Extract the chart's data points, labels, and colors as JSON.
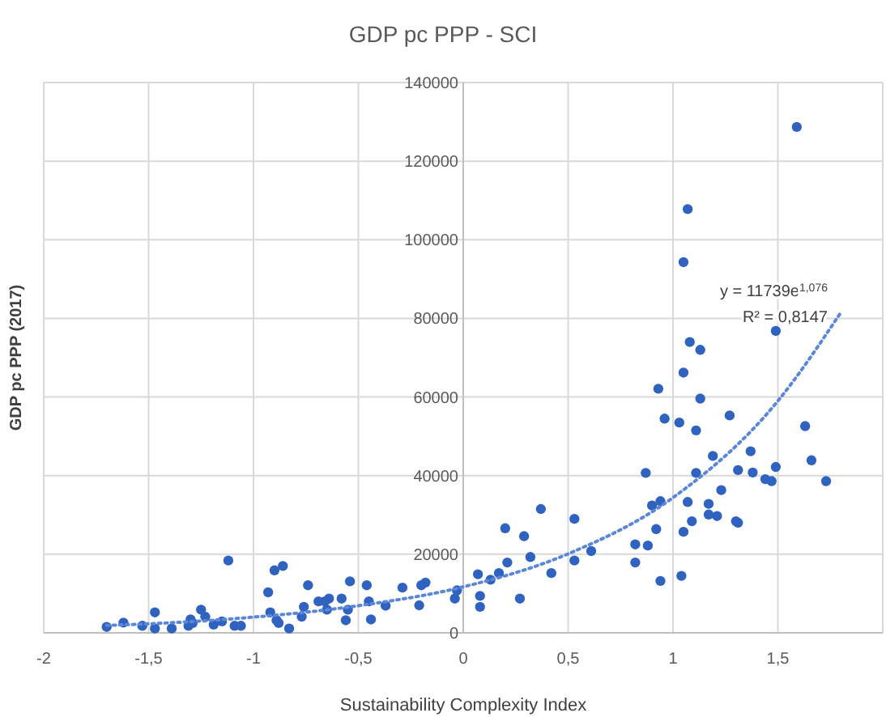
{
  "chart_data": {
    "type": "scatter",
    "title": "GDP pc PPP - SCI",
    "xlabel": "Sustainability Complexity Index",
    "ylabel": "GDP pc PPP (2017)",
    "xlim": [
      -2,
      2
    ],
    "xticks": [
      {
        "value": -2,
        "label": "-2"
      },
      {
        "value": -1.5,
        "label": "-1,5"
      },
      {
        "value": -1,
        "label": "-1"
      },
      {
        "value": -0.5,
        "label": "-0,5"
      },
      {
        "value": 0,
        "label": "0"
      },
      {
        "value": 0.5,
        "label": "0,5"
      },
      {
        "value": 1,
        "label": "1"
      },
      {
        "value": 1.5,
        "label": "1,5"
      },
      {
        "value": 2,
        "label": null
      }
    ],
    "ylim": [
      0,
      140000
    ],
    "yticks": [
      0,
      20000,
      40000,
      60000,
      80000,
      100000,
      120000,
      140000
    ],
    "grid": true,
    "marker": "circle",
    "annotations": [
      "y = 11739e$^{1,076}$",
      "R² = 0,8147"
    ],
    "series": [
      {
        "color": "#3063bf",
        "x": [
          -1.7,
          -1.62,
          -1.53,
          -1.47,
          -1.47,
          -1.39,
          -1.31,
          -1.3,
          -1.29,
          -1.25,
          -1.23,
          -1.19,
          -1.15,
          -1.12,
          -1.09,
          -1.06,
          -0.93,
          -0.92,
          -0.9,
          -0.89,
          -0.88,
          -0.86,
          -0.83,
          -0.77,
          -0.76,
          -0.74,
          -0.69,
          -0.66,
          -0.65,
          -0.64,
          -0.58,
          -0.56,
          -0.55,
          -0.54,
          -0.46,
          -0.45,
          -0.44,
          -0.37,
          -0.29,
          -0.21,
          -0.2,
          -0.18,
          -0.04,
          -0.03,
          0.07,
          0.08,
          0.08,
          0.13,
          0.17,
          0.2,
          0.21,
          0.27,
          0.29,
          0.32,
          0.37,
          0.42,
          0.53,
          0.53,
          0.61,
          0.82,
          0.82,
          0.87,
          0.88,
          0.9,
          0.92,
          0.94,
          0.94,
          0.96,
          1.03,
          1.04,
          1.05,
          1.07,
          1.09,
          1.11,
          1.11,
          1.17,
          1.17,
          1.19,
          1.21,
          1.23,
          1.27,
          1.3,
          1.31,
          1.31,
          1.37,
          1.38,
          1.44,
          1.47,
          1.49,
          1.63,
          1.66,
          1.73,
          1.07,
          1.59,
          1.05,
          1.49,
          1.08,
          1.13,
          1.05,
          0.93,
          1.13
        ],
        "values": [
          1500,
          2600,
          1800,
          5200,
          1100,
          1100,
          1800,
          3400,
          2500,
          5900,
          4100,
          2100,
          2900,
          18400,
          1800,
          1800,
          10300,
          5200,
          15900,
          3200,
          2500,
          17000,
          1100,
          4100,
          6600,
          12100,
          8000,
          8000,
          5900,
          8700,
          8700,
          3200,
          5900,
          13100,
          12100,
          8000,
          3400,
          6900,
          11500,
          7000,
          12100,
          12800,
          8700,
          10800,
          14900,
          9400,
          6600,
          13500,
          15200,
          26600,
          17900,
          8700,
          24600,
          19300,
          31500,
          15200,
          29000,
          18400,
          20800,
          17900,
          22500,
          40700,
          22200,
          32400,
          26400,
          13200,
          33500,
          54500,
          53500,
          14500,
          25700,
          33300,
          28400,
          51500,
          40700,
          32800,
          30100,
          45000,
          29700,
          36300,
          55300,
          28400,
          28000,
          41400,
          46200,
          40800,
          39100,
          38600,
          42200,
          52600,
          43900,
          38600,
          107800,
          128700,
          94300,
          76800,
          74000,
          72000,
          66200,
          62100,
          59600
        ]
      },
      {
        "type": "line",
        "color": "#5b87d6",
        "line_style": "dotted",
        "marker": "none",
        "x": [
          -1.7,
          -1.5,
          -1,
          -0.5,
          0,
          0.5,
          1,
          1.5,
          1.8
        ],
        "values": [
          1900,
          2300,
          4000,
          6900,
          11700,
          20100,
          34400,
          59000,
          81500
        ]
      }
    ]
  }
}
